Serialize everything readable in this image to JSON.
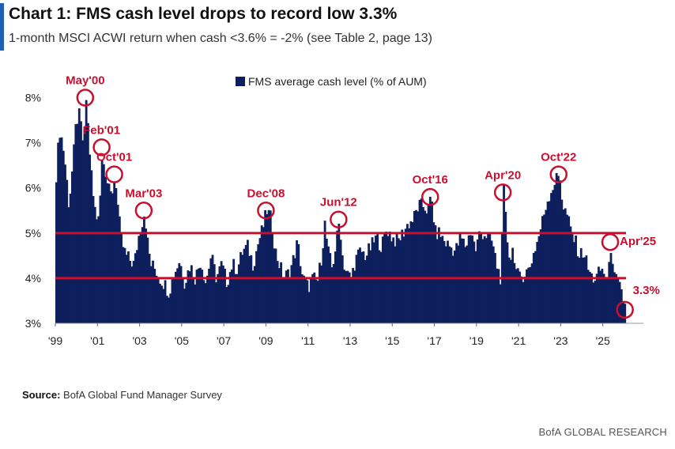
{
  "header": {
    "title": "Chart 1: FMS cash level drops to record low 3.3%",
    "subtitle": "1-month MSCI ACWI return when cash <3.6% = -2% (see Table 2, page 13)"
  },
  "footer": {
    "source_label": "Source:",
    "source_text": "BofA Global Fund Manager Survey",
    "brand": "BofA GLOBAL RESEARCH"
  },
  "colors": {
    "bar": "#0d1f5c",
    "reference_line": "#c8102e",
    "circle": "#c8102e",
    "annotation_text": "#c8102e",
    "accent": "#1f5fb8"
  },
  "chart_data": {
    "type": "bar",
    "title": "FMS average cash level (% of AUM)",
    "ylim": [
      3,
      8.5
    ],
    "yticks": [
      3,
      4,
      5,
      6,
      7,
      8
    ],
    "ytick_labels": [
      "3%",
      "4%",
      "5%",
      "6%",
      "7%",
      "8%"
    ],
    "xlim": [
      1999.0,
      2026.1
    ],
    "xticks": [
      1999,
      2001,
      2003,
      2005,
      2007,
      2009,
      2011,
      2013,
      2015,
      2017,
      2019,
      2021,
      2023,
      2025
    ],
    "xtick_labels": [
      "'99",
      "'01",
      "'03",
      "'05",
      "'07",
      "'09",
      "'11",
      "'13",
      "'15",
      "'17",
      "'19",
      "'21",
      "'23",
      "'25"
    ],
    "reference_lines": [
      5.0,
      4.0
    ],
    "legend": {
      "label": "FMS average cash level (% of AUM)",
      "position": "top-center"
    },
    "series": [
      {
        "name": "FMS average cash level (% of AUM)",
        "anchors": [
          [
            1999.0,
            6.3
          ],
          [
            1999.15,
            7.3
          ],
          [
            1999.3,
            7.0
          ],
          [
            1999.45,
            6.4
          ],
          [
            1999.6,
            5.6
          ],
          [
            1999.8,
            6.6
          ],
          [
            1999.95,
            7.5
          ],
          [
            2000.1,
            7.6
          ],
          [
            2000.3,
            6.9
          ],
          [
            2000.42,
            8.0
          ],
          [
            2000.55,
            7.0
          ],
          [
            2000.75,
            5.8
          ],
          [
            2000.9,
            5.3
          ],
          [
            2001.05,
            5.6
          ],
          [
            2001.2,
            6.9
          ],
          [
            2001.35,
            6.3
          ],
          [
            2001.55,
            5.8
          ],
          [
            2001.7,
            6.0
          ],
          [
            2001.8,
            6.3
          ],
          [
            2001.95,
            5.4
          ],
          [
            2002.1,
            4.8
          ],
          [
            2002.3,
            4.5
          ],
          [
            2002.5,
            4.4
          ],
          [
            2002.7,
            4.3
          ],
          [
            2002.9,
            4.9
          ],
          [
            2003.05,
            5.2
          ],
          [
            2003.2,
            5.5
          ],
          [
            2003.35,
            4.7
          ],
          [
            2003.5,
            4.3
          ],
          [
            2003.7,
            4.2
          ],
          [
            2003.9,
            4.0
          ],
          [
            2004.1,
            3.9
          ],
          [
            2004.35,
            3.7
          ],
          [
            2004.6,
            4.1
          ],
          [
            2004.85,
            4.4
          ],
          [
            2005.1,
            3.9
          ],
          [
            2005.35,
            4.3
          ],
          [
            2005.6,
            4.0
          ],
          [
            2005.85,
            4.4
          ],
          [
            2006.1,
            3.9
          ],
          [
            2006.35,
            4.5
          ],
          [
            2006.6,
            4.0
          ],
          [
            2006.85,
            4.3
          ],
          [
            2007.1,
            3.9
          ],
          [
            2007.35,
            4.3
          ],
          [
            2007.6,
            4.2
          ],
          [
            2007.85,
            4.6
          ],
          [
            2008.1,
            4.7
          ],
          [
            2008.35,
            4.3
          ],
          [
            2008.6,
            4.8
          ],
          [
            2008.8,
            5.1
          ],
          [
            2009.0,
            5.5
          ],
          [
            2009.2,
            5.3
          ],
          [
            2009.4,
            4.6
          ],
          [
            2009.6,
            4.3
          ],
          [
            2009.8,
            4.0
          ],
          [
            2010.0,
            4.1
          ],
          [
            2010.2,
            4.3
          ],
          [
            2010.45,
            4.8
          ],
          [
            2010.7,
            4.0
          ],
          [
            2010.95,
            3.8
          ],
          [
            2011.2,
            4.0
          ],
          [
            2011.4,
            3.9
          ],
          [
            2011.6,
            4.5
          ],
          [
            2011.75,
            5.2
          ],
          [
            2011.9,
            4.6
          ],
          [
            2012.1,
            4.2
          ],
          [
            2012.3,
            4.8
          ],
          [
            2012.45,
            5.3
          ],
          [
            2012.6,
            4.4
          ],
          [
            2012.8,
            4.1
          ],
          [
            2013.0,
            4.0
          ],
          [
            2013.2,
            4.4
          ],
          [
            2013.45,
            4.6
          ],
          [
            2013.7,
            4.5
          ],
          [
            2013.95,
            4.7
          ],
          [
            2014.2,
            4.9
          ],
          [
            2014.45,
            4.7
          ],
          [
            2014.7,
            5.1
          ],
          [
            2014.95,
            4.9
          ],
          [
            2015.2,
            4.8
          ],
          [
            2015.45,
            5.0
          ],
          [
            2015.7,
            5.2
          ],
          [
            2015.95,
            5.3
          ],
          [
            2016.2,
            5.6
          ],
          [
            2016.45,
            5.6
          ],
          [
            2016.65,
            5.5
          ],
          [
            2016.8,
            5.8
          ],
          [
            2017.0,
            5.0
          ],
          [
            2017.2,
            5.0
          ],
          [
            2017.45,
            4.8
          ],
          [
            2017.7,
            4.7
          ],
          [
            2017.95,
            4.6
          ],
          [
            2018.2,
            4.9
          ],
          [
            2018.45,
            4.7
          ],
          [
            2018.7,
            5.1
          ],
          [
            2018.9,
            4.6
          ],
          [
            2019.1,
            5.0
          ],
          [
            2019.3,
            5.0
          ],
          [
            2019.5,
            4.9
          ],
          [
            2019.7,
            4.8
          ],
          [
            2019.9,
            4.3
          ],
          [
            2020.1,
            4.0
          ],
          [
            2020.25,
            5.9
          ],
          [
            2020.4,
            4.9
          ],
          [
            2020.55,
            4.4
          ],
          [
            2020.7,
            4.7
          ],
          [
            2020.85,
            4.1
          ],
          [
            2021.0,
            4.0
          ],
          [
            2021.2,
            4.1
          ],
          [
            2021.45,
            4.2
          ],
          [
            2021.7,
            4.6
          ],
          [
            2021.9,
            4.9
          ],
          [
            2022.1,
            5.3
          ],
          [
            2022.3,
            5.7
          ],
          [
            2022.55,
            6.0
          ],
          [
            2022.75,
            6.2
          ],
          [
            2022.9,
            6.3
          ],
          [
            2023.05,
            5.6
          ],
          [
            2023.25,
            5.4
          ],
          [
            2023.45,
            5.0
          ],
          [
            2023.65,
            4.8
          ],
          [
            2023.85,
            4.5
          ],
          [
            2024.05,
            4.6
          ],
          [
            2024.25,
            4.2
          ],
          [
            2024.45,
            4.0
          ],
          [
            2024.65,
            4.0
          ],
          [
            2024.85,
            4.2
          ],
          [
            2025.05,
            4.1
          ],
          [
            2025.2,
            3.9
          ],
          [
            2025.35,
            4.8
          ],
          [
            2025.5,
            4.0
          ],
          [
            2025.65,
            3.9
          ],
          [
            2025.8,
            3.7
          ],
          [
            2025.95,
            3.5
          ],
          [
            2026.05,
            3.3
          ]
        ]
      }
    ],
    "annotations": [
      {
        "label": "May'00",
        "x": 2000.42,
        "y": 8.0,
        "text_side": "above"
      },
      {
        "label": "Feb'01",
        "x": 2001.2,
        "y": 6.9,
        "text_side": "above"
      },
      {
        "label": "Oct'01",
        "x": 2001.8,
        "y": 6.3,
        "text_side": "above"
      },
      {
        "label": "Mar'03",
        "x": 2003.2,
        "y": 5.5,
        "text_side": "above"
      },
      {
        "label": "Dec'08",
        "x": 2009.0,
        "y": 5.5,
        "text_side": "above"
      },
      {
        "label": "Jun'12",
        "x": 2012.45,
        "y": 5.3,
        "text_side": "above"
      },
      {
        "label": "Oct'16",
        "x": 2016.8,
        "y": 5.8,
        "text_side": "above"
      },
      {
        "label": "Apr'20",
        "x": 2020.25,
        "y": 5.9,
        "text_side": "above"
      },
      {
        "label": "Oct'22",
        "x": 2022.9,
        "y": 6.3,
        "text_side": "above"
      },
      {
        "label": "Apr'25",
        "x": 2025.35,
        "y": 4.8,
        "text_side": "right"
      },
      {
        "label": "3.3%",
        "x": 2026.05,
        "y": 3.3,
        "text_side": "upper-right"
      }
    ]
  }
}
